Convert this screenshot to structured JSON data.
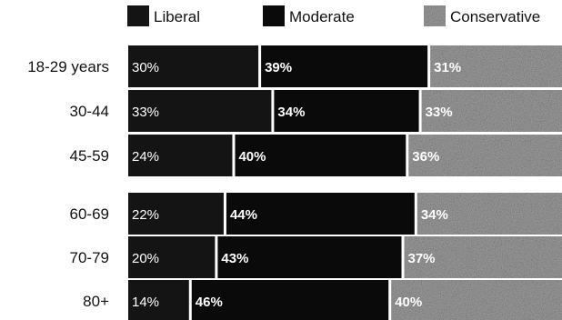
{
  "chart_data": {
    "type": "bar",
    "orientation": "horizontal",
    "stacked": true,
    "normalized": true,
    "legend_position": "top",
    "grid": false,
    "xlim": [
      0,
      100
    ],
    "categories": [
      "18-29 years",
      "30-44",
      "45-59",
      "60-69",
      "70-79",
      "80+"
    ],
    "series": [
      {
        "name": "Liberal",
        "values": [
          30,
          33,
          24,
          22,
          20,
          14
        ],
        "color": "#141414"
      },
      {
        "name": "Moderate",
        "values": [
          39,
          34,
          40,
          44,
          43,
          46
        ],
        "color": "#0a0a0a"
      },
      {
        "name": "Conservative",
        "values": [
          31,
          33,
          36,
          34,
          37,
          40
        ],
        "color": "#9a9a9a"
      }
    ],
    "data_label_format": "{v}%"
  }
}
